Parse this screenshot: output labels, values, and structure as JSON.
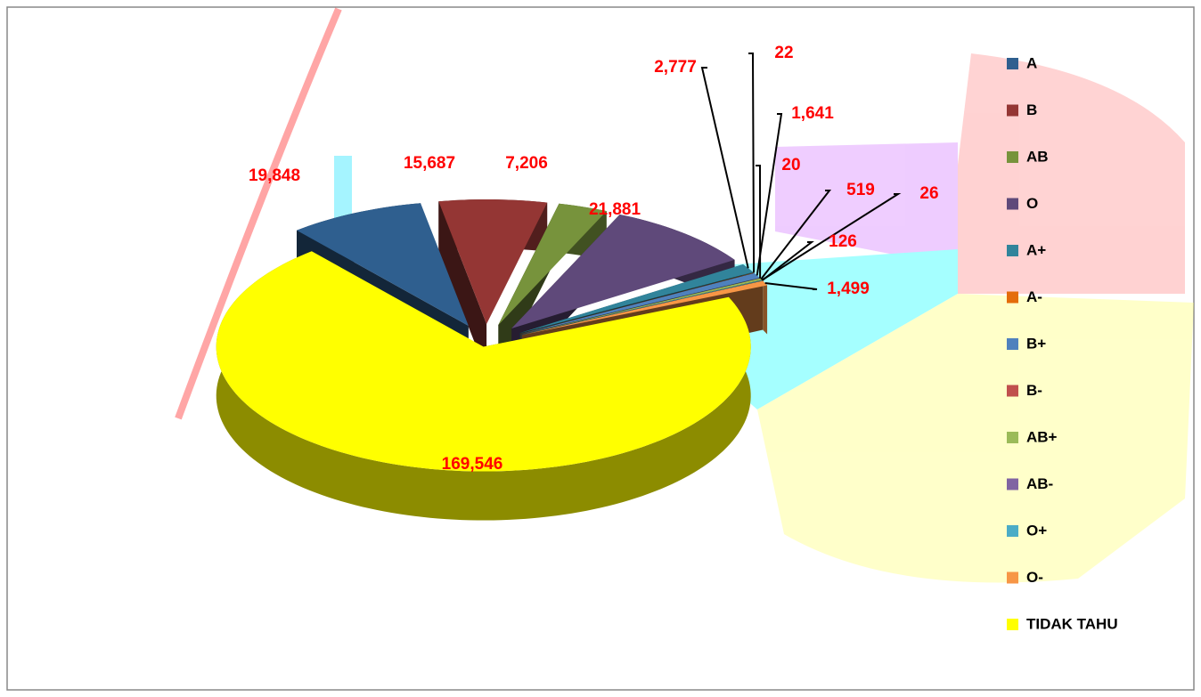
{
  "chart_data": {
    "type": "pie",
    "categories": [
      "A",
      "B",
      "AB",
      "O",
      "A+",
      "A-",
      "B+",
      "B-",
      "AB+",
      "AB-",
      "O+",
      "O-",
      "TIDAK TAHU"
    ],
    "values": [
      19848,
      15687,
      7206,
      21881,
      2777,
      22,
      1641,
      20,
      519,
      26,
      126,
      1499,
      169546
    ],
    "value_labels": [
      "19,848",
      "15,687",
      "7,206",
      "21,881",
      "2,777",
      "22",
      "1,641",
      "20",
      "519",
      "26",
      "126",
      "1,499",
      "169,546"
    ],
    "colors": [
      "#2f5f8f",
      "#943634",
      "#77933c",
      "#5f497a",
      "#31849b",
      "#e46c0a",
      "#4f81bd",
      "#c0504d",
      "#9bbb59",
      "#8064a2",
      "#4bacc6",
      "#f79646",
      "#ffff00"
    ],
    "legend": "right"
  }
}
